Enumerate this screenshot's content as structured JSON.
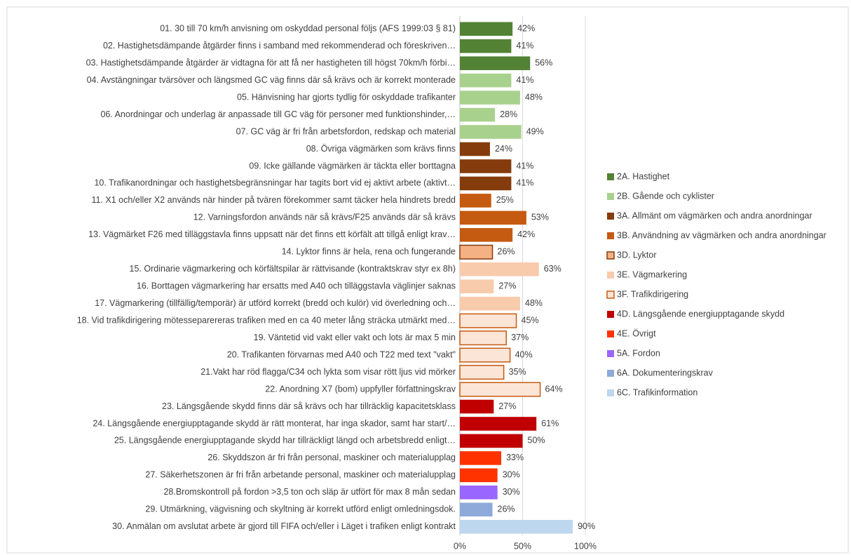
{
  "chart_data": {
    "type": "bar",
    "orientation": "horizontal",
    "categories": [
      "01. 30 till 70 km/h anvisning om oskyddad personal följs (AFS 1999:03 § 81)",
      "02. Hastighetsdämpande åtgärder finns i samband med rekommenderad och föreskriven…",
      "03. Hastighetsdämpande åtgärder är vidtagna för att få ner hastigheten till högst 70km/h förbi…",
      "04. Avstängningar tvärsöver och längsmed GC väg finns där så krävs och är korrekt monterade",
      "05. Hänvisning har gjorts tydlig för oskyddade trafikanter",
      "06. Anordningar och underlag är anpassade till GC väg för personer med funktionshinder,…",
      "07. GC väg är fri från arbetsfordon, redskap och material",
      "08. Övriga vägmärken som krävs finns",
      "09. Icke gällande vägmärken är täckta eller borttagna",
      "10. Trafikanordningar och hastighetsbegränsningar har tagits bort vid ej aktivt arbete (aktivt…",
      "11. X1 och/eller X2 används när hinder på tvären förekommer samt täcker hela hindrets bredd",
      "12. Varningsfordon används när så krävs/F25 används där så krävs",
      "13. Vägmärket F26 med tilläggstavla finns uppsatt när det finns ett körfält att tillgå enligt krav…",
      "14. Lyktor finns är hela, rena och fungerande",
      "15. Ordinarie vägmarkering och körfältspilar är rättvisande (kontraktskrav styr ex 8h)",
      "16. Borttagen vägmarkering har ersatts med A40 och tilläggstavla väglinjer saknas",
      "17. Vägmarkering (tillfällig/temporär) är utförd korrekt (bredd och kulör) vid överledning och…",
      "18. Vid trafikdirigering mötesseparereras trafiken med en ca 40 meter lång sträcka utmärkt med…",
      "19. Väntetid vid vakt eller vakt och lots är max 5 min",
      "20. Trafikanten förvarnas med A40 och T22 med text \"vakt\"",
      "21.Vakt har röd flagga/C34 och lykta som visar rött ljus vid mörker",
      "22. Anordning X7 (bom) uppfyller författningskrav",
      "23. Längsgående skydd finns där så krävs och har tillräcklig kapacitetsklass",
      "24. Längsgående energiupptagande skydd är rätt monterat, har inga skador, samt har start/…",
      "25. Längsgående energiupptagande skydd har tillräckligt längd och arbetsbredd enligt…",
      "26. Skyddszon är fri från personal, maskiner och materialupplag",
      "27. Säkerhetszonen är fri från arbetande personal, maskiner och materialupplag",
      "28.Bromskontroll på fordon >3,5 ton och släp är utfört för max 8 mån sedan",
      "29. Utmärkning, vägvisning och skyltning är korrekt utförd enligt omledningsdok.",
      "30. Anmälan om avslutat arbete är gjord till FIFA och/eller i Läget i trafiken enligt kontrakt"
    ],
    "series": [
      {
        "name": "2A. Hastighet",
        "color": "#548235",
        "values": [
          42,
          41,
          56,
          null,
          null,
          null,
          null,
          null,
          null,
          null,
          null,
          null,
          null,
          null,
          null,
          null,
          null,
          null,
          null,
          null,
          null,
          null,
          null,
          null,
          null,
          null,
          null,
          null,
          null,
          null
        ],
        "value_labels": [
          "42%",
          "41%",
          "56%",
          null,
          null,
          null,
          null,
          null,
          null,
          null,
          null,
          null,
          null,
          null,
          null,
          null,
          null,
          null,
          null,
          null,
          null,
          null,
          null,
          null,
          null,
          null,
          null,
          null,
          null,
          null
        ]
      },
      {
        "name": "2B. Gående och cyklister",
        "color": "#a9d18e",
        "values": [
          null,
          null,
          null,
          41,
          48,
          28,
          49,
          null,
          null,
          null,
          null,
          null,
          null,
          null,
          null,
          null,
          null,
          null,
          null,
          null,
          null,
          null,
          null,
          null,
          null,
          null,
          null,
          null,
          null,
          null
        ],
        "value_labels": [
          null,
          null,
          null,
          "41%",
          "48%",
          "28%",
          "49%",
          null,
          null,
          null,
          null,
          null,
          null,
          null,
          null,
          null,
          null,
          null,
          null,
          null,
          null,
          null,
          null,
          null,
          null,
          null,
          null,
          null,
          null,
          null
        ]
      },
      {
        "name": "3A. Allmänt om vägmärken och andra anordningar",
        "color": "#843c0c",
        "values": [
          null,
          null,
          null,
          null,
          null,
          null,
          null,
          24,
          41,
          41,
          null,
          null,
          null,
          null,
          null,
          null,
          null,
          null,
          null,
          null,
          null,
          null,
          null,
          null,
          null,
          null,
          null,
          null,
          null,
          null
        ],
        "value_labels": [
          null,
          null,
          null,
          null,
          null,
          null,
          null,
          "24%",
          "41%",
          "41%",
          null,
          null,
          null,
          null,
          null,
          null,
          null,
          null,
          null,
          null,
          null,
          null,
          null,
          null,
          null,
          null,
          null,
          null,
          null,
          null
        ]
      },
      {
        "name": "3B. Användning av vägmärken och andra anordningar",
        "color": "#c55a11",
        "values": [
          null,
          null,
          null,
          null,
          null,
          null,
          null,
          null,
          null,
          null,
          25,
          53,
          42,
          null,
          null,
          null,
          null,
          null,
          null,
          null,
          null,
          null,
          null,
          null,
          null,
          null,
          null,
          null,
          null,
          null
        ],
        "value_labels": [
          null,
          null,
          null,
          null,
          null,
          null,
          null,
          null,
          null,
          null,
          "25%",
          "53%",
          "42%",
          null,
          null,
          null,
          null,
          null,
          null,
          null,
          null,
          null,
          null,
          null,
          null,
          null,
          null,
          null,
          null,
          null
        ]
      },
      {
        "name": "3D. Lyktor",
        "color": "#f4b183",
        "border": "#843c0c",
        "values": [
          null,
          null,
          null,
          null,
          null,
          null,
          null,
          null,
          null,
          null,
          null,
          null,
          null,
          26,
          null,
          null,
          null,
          null,
          null,
          null,
          null,
          null,
          null,
          null,
          null,
          null,
          null,
          null,
          null,
          null
        ],
        "value_labels": [
          null,
          null,
          null,
          null,
          null,
          null,
          null,
          null,
          null,
          null,
          null,
          null,
          null,
          "26%",
          null,
          null,
          null,
          null,
          null,
          null,
          null,
          null,
          null,
          null,
          null,
          null,
          null,
          null,
          null,
          null
        ]
      },
      {
        "name": "3E. Vägmarkering",
        "color": "#f8cbad",
        "values": [
          null,
          null,
          null,
          null,
          null,
          null,
          null,
          null,
          null,
          null,
          null,
          null,
          null,
          null,
          63,
          27,
          48,
          null,
          null,
          null,
          null,
          null,
          null,
          null,
          null,
          null,
          null,
          null,
          null,
          null
        ],
        "value_labels": [
          null,
          null,
          null,
          null,
          null,
          null,
          null,
          null,
          null,
          null,
          null,
          null,
          null,
          null,
          "63%",
          "27%",
          "48%",
          null,
          null,
          null,
          null,
          null,
          null,
          null,
          null,
          null,
          null,
          null,
          null,
          null
        ]
      },
      {
        "name": "3F. Trafikdirigering",
        "color": "#fbe5d6",
        "border": "#c55a11",
        "values": [
          null,
          null,
          null,
          null,
          null,
          null,
          null,
          null,
          null,
          null,
          null,
          null,
          null,
          null,
          null,
          null,
          null,
          45,
          37,
          40,
          35,
          64,
          null,
          null,
          null,
          null,
          null,
          null,
          null,
          null
        ],
        "value_labels": [
          null,
          null,
          null,
          null,
          null,
          null,
          null,
          null,
          null,
          null,
          null,
          null,
          null,
          null,
          null,
          null,
          null,
          "45%",
          "37%",
          "40%",
          "35%",
          "64%",
          null,
          null,
          null,
          null,
          null,
          null,
          null,
          null
        ]
      },
      {
        "name": "4D. Längsgående energiupptagande skydd",
        "color": "#c00000",
        "values": [
          null,
          null,
          null,
          null,
          null,
          null,
          null,
          null,
          null,
          null,
          null,
          null,
          null,
          null,
          null,
          null,
          null,
          null,
          null,
          null,
          null,
          null,
          27,
          61,
          50,
          null,
          null,
          null,
          null,
          null
        ],
        "value_labels": [
          null,
          null,
          null,
          null,
          null,
          null,
          null,
          null,
          null,
          null,
          null,
          null,
          null,
          null,
          null,
          null,
          null,
          null,
          null,
          null,
          null,
          null,
          "27%",
          "61%",
          "50%",
          null,
          null,
          null,
          null,
          null
        ]
      },
      {
        "name": "4E. Övrigt",
        "color": "#ff3300",
        "values": [
          null,
          null,
          null,
          null,
          null,
          null,
          null,
          null,
          null,
          null,
          null,
          null,
          null,
          null,
          null,
          null,
          null,
          null,
          null,
          null,
          null,
          null,
          null,
          null,
          null,
          33,
          30,
          null,
          null,
          null
        ],
        "value_labels": [
          null,
          null,
          null,
          null,
          null,
          null,
          null,
          null,
          null,
          null,
          null,
          null,
          null,
          null,
          null,
          null,
          null,
          null,
          null,
          null,
          null,
          null,
          null,
          null,
          null,
          "33%",
          "30%",
          null,
          null,
          null
        ]
      },
      {
        "name": "5A. Fordon",
        "color": "#9966ff",
        "values": [
          null,
          null,
          null,
          null,
          null,
          null,
          null,
          null,
          null,
          null,
          null,
          null,
          null,
          null,
          null,
          null,
          null,
          null,
          null,
          null,
          null,
          null,
          null,
          null,
          null,
          null,
          null,
          30,
          null,
          null
        ],
        "value_labels": [
          null,
          null,
          null,
          null,
          null,
          null,
          null,
          null,
          null,
          null,
          null,
          null,
          null,
          null,
          null,
          null,
          null,
          null,
          null,
          null,
          null,
          null,
          null,
          null,
          null,
          null,
          null,
          "30%",
          null,
          null
        ]
      },
      {
        "name": "6A. Dokumenteringskrav",
        "color": "#8eaadb",
        "values": [
          null,
          null,
          null,
          null,
          null,
          null,
          null,
          null,
          null,
          null,
          null,
          null,
          null,
          null,
          null,
          null,
          null,
          null,
          null,
          null,
          null,
          null,
          null,
          null,
          null,
          null,
          null,
          null,
          26,
          null
        ],
        "value_labels": [
          null,
          null,
          null,
          null,
          null,
          null,
          null,
          null,
          null,
          null,
          null,
          null,
          null,
          null,
          null,
          null,
          null,
          null,
          null,
          null,
          null,
          null,
          null,
          null,
          null,
          null,
          null,
          null,
          "26%",
          null
        ]
      },
      {
        "name": "6C. Trafikinformation",
        "color": "#bdd7ee",
        "values": [
          null,
          null,
          null,
          null,
          null,
          null,
          null,
          null,
          null,
          null,
          null,
          null,
          null,
          null,
          null,
          null,
          null,
          null,
          null,
          null,
          null,
          null,
          null,
          null,
          null,
          null,
          null,
          null,
          null,
          90
        ],
        "value_labels": [
          null,
          null,
          null,
          null,
          null,
          null,
          null,
          null,
          null,
          null,
          null,
          null,
          null,
          null,
          null,
          null,
          null,
          null,
          null,
          null,
          null,
          null,
          null,
          null,
          null,
          null,
          null,
          null,
          null,
          "90%"
        ]
      }
    ],
    "xlim": [
      0,
      100
    ],
    "xticks": [
      {
        "value": 0,
        "label": "0%"
      },
      {
        "value": 50,
        "label": "50%"
      },
      {
        "value": 100,
        "label": "100%"
      }
    ],
    "grid": true,
    "legend": "right"
  }
}
